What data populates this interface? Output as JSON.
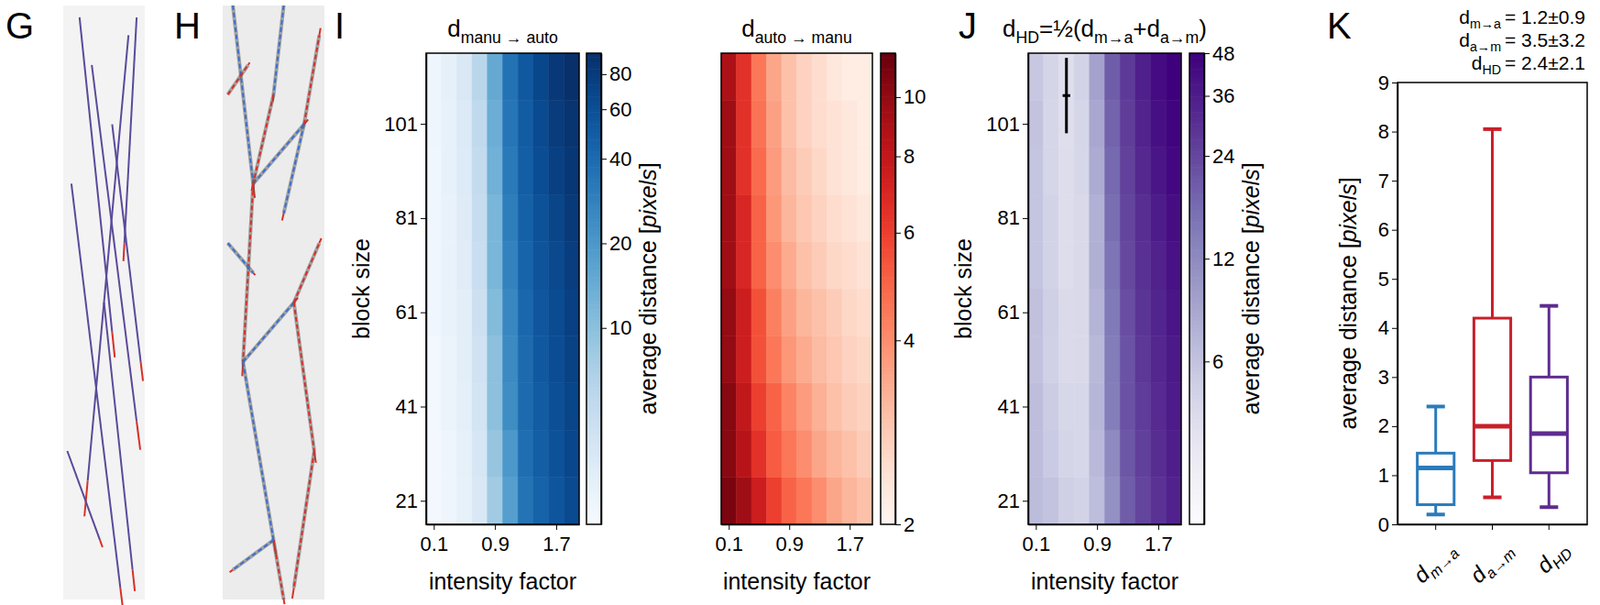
{
  "image_panels": [
    {
      "panel": "G"
    },
    {
      "panel": "H"
    }
  ],
  "chart_data": [
    {
      "type": "heatmap",
      "panel": "I",
      "title": "dmanu → auto",
      "color": "blues",
      "x": [
        0.1,
        0.3,
        0.5,
        0.7,
        0.9,
        1.1,
        1.3,
        1.5,
        1.7,
        1.9
      ],
      "y": [
        21,
        31,
        41,
        51,
        61,
        71,
        81,
        91,
        101,
        111
      ],
      "values": [
        [
          2.2,
          2.4,
          2.7,
          3.5,
          8,
          18,
          35,
          45,
          55,
          65
        ],
        [
          2.2,
          2.4,
          2.8,
          3.8,
          9,
          20,
          38,
          48,
          58,
          68
        ],
        [
          2.2,
          2.5,
          2.9,
          4,
          10,
          24,
          40,
          50,
          60,
          70
        ],
        [
          2.2,
          2.5,
          3,
          4.2,
          10,
          25,
          40,
          52,
          62,
          72
        ],
        [
          2.3,
          2.6,
          3,
          4.5,
          11,
          26,
          42,
          54,
          64,
          75
        ],
        [
          2.3,
          2.6,
          3.1,
          4.8,
          12,
          28,
          44,
          56,
          66,
          78
        ],
        [
          2.3,
          2.6,
          3.2,
          5,
          12,
          30,
          46,
          58,
          70,
          82
        ],
        [
          2.3,
          2.7,
          3.3,
          5.2,
          13,
          32,
          48,
          62,
          75,
          86
        ],
        [
          2.4,
          2.7,
          3.4,
          5.5,
          14,
          34,
          50,
          65,
          80,
          90
        ],
        [
          2.4,
          2.8,
          3.5,
          6,
          15,
          36,
          52,
          68,
          84,
          94
        ]
      ],
      "xlim": [
        0,
        2
      ],
      "ylim": [
        16,
        116
      ],
      "xticks": [
        0.1,
        0.9,
        1.7
      ],
      "yticks": [
        21,
        41,
        61,
        81,
        101
      ],
      "xlabel": "intensity factor",
      "ylabel": "block size",
      "colorbar": {
        "range": [
          2,
          95
        ],
        "ticks": [
          10,
          20,
          40,
          60,
          80
        ],
        "log": true,
        "label": "average distance [pixels]"
      }
    },
    {
      "type": "heatmap",
      "title": "dauto → manu",
      "color": "reds",
      "tick_labels": "x",
      "x": [
        0.1,
        0.3,
        0.5,
        0.7,
        0.9,
        1.1,
        1.3,
        1.5,
        1.7,
        1.9
      ],
      "y": [
        21,
        31,
        41,
        51,
        61,
        71,
        81,
        91,
        101,
        111
      ],
      "values": [
        [
          11,
          9.5,
          7.5,
          6,
          5,
          4.5,
          4,
          3.5,
          3.2,
          3
        ],
        [
          10.5,
          8.5,
          6.5,
          5.2,
          4.5,
          4,
          3.5,
          3.2,
          3,
          2.8
        ],
        [
          10.5,
          8,
          6,
          5,
          4.2,
          3.7,
          3.3,
          3,
          2.8,
          2.7
        ],
        [
          10,
          7.5,
          5.5,
          4.5,
          3.8,
          3.4,
          3.1,
          2.9,
          2.7,
          2.6
        ],
        [
          10,
          7.5,
          5.5,
          4.3,
          3.6,
          3.2,
          3,
          2.8,
          2.6,
          2.5
        ],
        [
          9.5,
          7,
          5,
          4,
          3.4,
          3,
          2.8,
          2.6,
          2.5,
          2.4
        ],
        [
          9.5,
          7,
          5,
          3.8,
          3.2,
          2.9,
          2.7,
          2.5,
          2.4,
          2.3
        ],
        [
          9.5,
          6.5,
          4.8,
          3.7,
          3.1,
          2.8,
          2.6,
          2.4,
          2.3,
          2.2
        ],
        [
          9.5,
          6.5,
          4.6,
          3.6,
          3,
          2.7,
          2.5,
          2.4,
          2.3,
          2.2
        ],
        [
          9,
          6.5,
          4.5,
          3.5,
          3,
          2.7,
          2.5,
          2.3,
          2.2,
          2.2
        ]
      ],
      "xlim": [
        0,
        2
      ],
      "ylim": [
        16,
        116
      ],
      "xticks": [
        0.1,
        0.9,
        1.7
      ],
      "xlabel": "intensity factor",
      "colorbar": {
        "range": [
          2,
          11.8
        ],
        "ticks": [
          2,
          4,
          6,
          8,
          10
        ],
        "log": true
      }
    },
    {
      "type": "heatmap",
      "panel": "J",
      "title": "dHD=½(dm→a+da→m)",
      "color": "purples",
      "x": [
        0.1,
        0.3,
        0.5,
        0.7,
        0.9,
        1.1,
        1.3,
        1.5,
        1.7,
        1.9
      ],
      "y": [
        21,
        31,
        41,
        51,
        61,
        71,
        81,
        91,
        101,
        111
      ],
      "values": [
        [
          6.6,
          6.0,
          5.1,
          4.8,
          6.5,
          11.3,
          19.5,
          24.3,
          29.1,
          34
        ],
        [
          6.4,
          5.5,
          4.7,
          4.5,
          6.8,
          12,
          20.8,
          25.6,
          30.5,
          35.4
        ],
        [
          6.4,
          5.3,
          4.5,
          4.5,
          7.1,
          13.9,
          21.7,
          26.5,
          31.4,
          36.4
        ],
        [
          6.1,
          5.0,
          4.3,
          4.4,
          6.9,
          14.2,
          21.6,
          27.5,
          32.4,
          37.3
        ],
        [
          6.2,
          5.1,
          4.3,
          4.4,
          7.3,
          14.6,
          22.5,
          28.4,
          33.3,
          38.8
        ],
        [
          5.9,
          4.8,
          4.1,
          4.4,
          7.7,
          15.5,
          23.4,
          29.3,
          34.3,
          40.2
        ],
        [
          5.9,
          4.8,
          4.1,
          4.4,
          7.6,
          16.5,
          24.4,
          30.3,
          36.2,
          42.2
        ],
        [
          5.9,
          4.6,
          4.1,
          4.5,
          8.1,
          17.4,
          25.3,
          32.2,
          38.7,
          44.1
        ],
        [
          6.0,
          4.6,
          4.0,
          4.6,
          8.5,
          18.4,
          26.3,
          33.7,
          41.2,
          46.1
        ],
        [
          5.7,
          4.7,
          4.0,
          4.8,
          9.0,
          19.4,
          27.3,
          35.2,
          43.1,
          48
        ]
      ],
      "xlim": [
        0,
        2
      ],
      "ylim": [
        16,
        116
      ],
      "xticks": [
        0.1,
        0.9,
        1.7
      ],
      "yticks": [
        21,
        41,
        61,
        81,
        101
      ],
      "xlabel": "intensity factor",
      "ylabel": "block size",
      "optimum": {
        "x": 0.5,
        "y": 107,
        "x_error": 0.05,
        "y_error": 8
      },
      "colorbar": {
        "range": [
          2,
          48
        ],
        "ticks": [
          6,
          12,
          24,
          36,
          48
        ],
        "log": true,
        "label": "average distance [pixels]"
      }
    },
    {
      "type": "box",
      "panel": "K",
      "categories": [
        "dm→a",
        "da→m",
        "dHD"
      ],
      "min": [
        0.2,
        0.55,
        0.35
      ],
      "q1": [
        0.4,
        1.3,
        1.05
      ],
      "median": [
        1.15,
        2.0,
        1.85
      ],
      "q3": [
        1.45,
        4.2,
        3.0
      ],
      "max": [
        2.4,
        8.05,
        4.45
      ],
      "colors": [
        "#2b7bba",
        "#c8202b",
        "#5e2c8f"
      ],
      "ylim": [
        0,
        9
      ],
      "yticks": [
        0,
        1,
        2,
        3,
        4,
        5,
        6,
        7,
        8,
        9
      ],
      "ylabel": "average distance [pixels]",
      "annotations": [
        "dm→a = 1.2±0.9",
        "da→m = 3.5±3.2",
        "dHD = 2.4±2.1"
      ]
    }
  ]
}
